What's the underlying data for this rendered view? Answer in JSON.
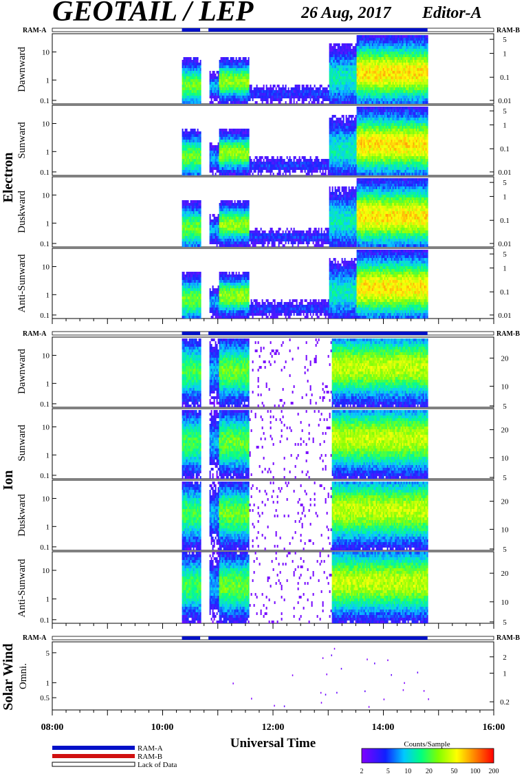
{
  "header": {
    "title": "GEOTAIL / LEP",
    "date": "26 Aug, 2017",
    "editor": "Editor-A"
  },
  "species": {
    "electron": "Electron",
    "ion": "Ion",
    "solar_wind": "Solar Wind"
  },
  "ram_labels": {
    "a": "RAM-A",
    "b": "RAM-B"
  },
  "chart_data": [
    {
      "type": "heatmap",
      "group": "Electron",
      "panels": [
        {
          "name": "Dawnward",
          "left_ticks": [
            "10",
            "1",
            "0.1"
          ],
          "right_ticks": [
            "5",
            "1",
            "0.1",
            "0.01"
          ]
        },
        {
          "name": "Sunward",
          "left_ticks": [
            "10",
            "1",
            "0.1"
          ],
          "right_ticks": [
            "5",
            "1",
            "0.1",
            "0.01"
          ]
        },
        {
          "name": "Duskward",
          "left_ticks": [
            "10",
            "1",
            "0.1"
          ],
          "right_ticks": [
            "5",
            "1",
            "0.1",
            "0.01"
          ]
        },
        {
          "name": "Anti-Sunward",
          "left_ticks": [
            "10",
            "1",
            "0.1"
          ],
          "right_ticks": [
            "5",
            "1",
            "0.1",
            "0.01"
          ]
        }
      ]
    },
    {
      "type": "heatmap",
      "group": "Ion",
      "panels": [
        {
          "name": "Dawnward",
          "left_ticks": [
            "10",
            "1",
            "0.1"
          ],
          "right_ticks": [
            "20",
            "10",
            "5"
          ]
        },
        {
          "name": "Sunward",
          "left_ticks": [
            "10",
            "1",
            "0.1"
          ],
          "right_ticks": [
            "20",
            "10",
            "5"
          ]
        },
        {
          "name": "Duskward",
          "left_ticks": [
            "10",
            "1",
            "0.1"
          ],
          "right_ticks": [
            "20",
            "10",
            "5"
          ]
        },
        {
          "name": "Anti-Sunward",
          "left_ticks": [
            "10",
            "1",
            "0.1"
          ],
          "right_ticks": [
            "20",
            "10",
            "5"
          ]
        }
      ]
    },
    {
      "type": "scatter",
      "group": "Solar Wind",
      "panels": [
        {
          "name": "Omni.",
          "left_ticks": [
            "5",
            "1",
            "0.5"
          ],
          "right_ticks": [
            "2",
            "1",
            "0.2"
          ]
        }
      ]
    }
  ],
  "time_axis": {
    "ticks": [
      "08:00",
      "10:00",
      "12:00",
      "14:00",
      "16:00"
    ],
    "label": "Universal Time",
    "range_hours": [
      8,
      16
    ],
    "data_start_hour": 10.35,
    "data_end_hour": 14.8,
    "gap_hours": [
      [
        10.68,
        10.83
      ]
    ]
  },
  "legend": {
    "ram_a": "RAM-A",
    "ram_b": "RAM-B",
    "lack": "Lack of Data",
    "colorbar_title": "Counts/Sample",
    "colorbar_ticks": [
      "2",
      "5",
      "10",
      "20",
      "50",
      "100",
      "200"
    ]
  },
  "colors": {
    "ram_a": "#0010c8",
    "ram_b": "#d01010",
    "axis": "#000000"
  }
}
